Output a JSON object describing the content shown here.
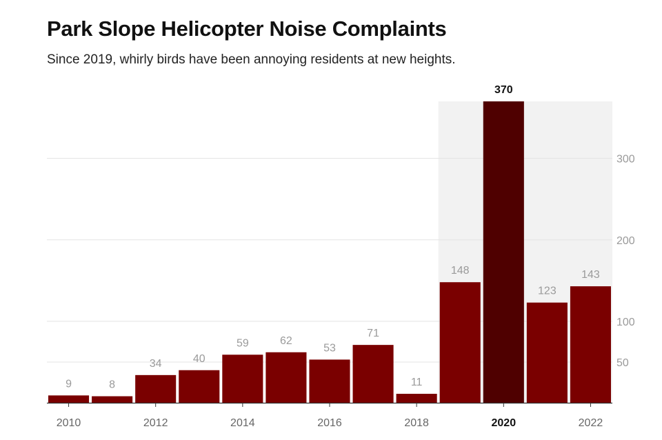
{
  "title": "Park Slope Helicopter Noise Complaints",
  "subtitle": "Since 2019, whirly birds have been annoying residents at new heights.",
  "chart_data": {
    "type": "bar",
    "title": "Park Slope Helicopter Noise Complaints",
    "subtitle": "Since 2019, whirly birds have been annoying residents at new heights.",
    "categories": [
      "2010",
      "2011",
      "2012",
      "2013",
      "2014",
      "2015",
      "2016",
      "2017",
      "2018",
      "2019",
      "2020",
      "2021",
      "2022"
    ],
    "values": [
      9,
      8,
      34,
      40,
      59,
      62,
      53,
      71,
      11,
      148,
      370,
      123,
      143
    ],
    "x_tick_labels": [
      "2010",
      "2012",
      "2014",
      "2016",
      "2018",
      "2020",
      "2022"
    ],
    "y_ticks": [
      50,
      100,
      200,
      300
    ],
    "ylim": [
      0,
      370
    ],
    "y_axis_side": "right",
    "highlight_category": "2020",
    "shaded_categories": [
      "2019",
      "2020",
      "2021",
      "2022"
    ],
    "grid": true,
    "xlabel": "",
    "ylabel": "",
    "colors": {
      "bar": "#7a0000",
      "highlight_bar": "#4f0000",
      "shade": "#f2f2f2",
      "grid": "#e3e3e3"
    }
  }
}
